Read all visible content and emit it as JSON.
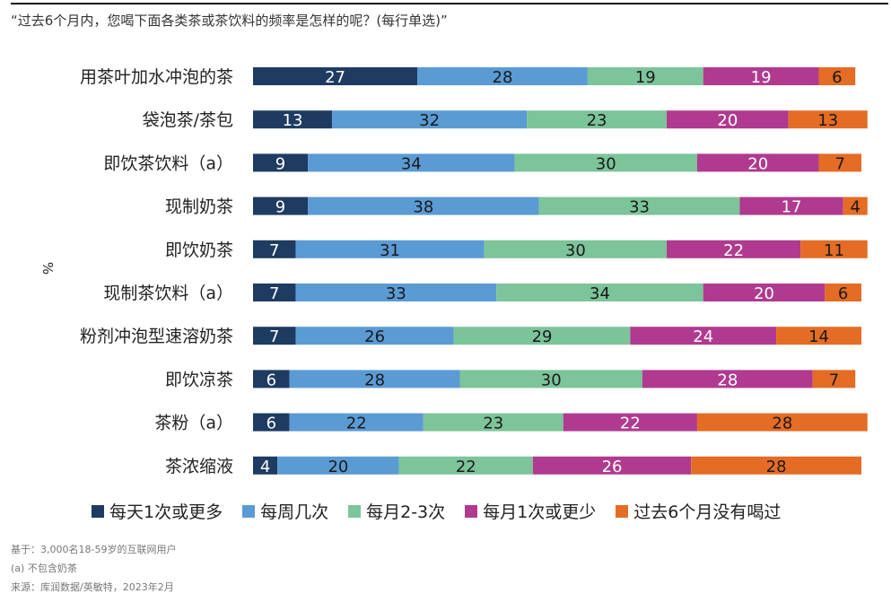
{
  "question": "“过去6个月内，您喝下面各类茶或茶饮料的频率是怎样的呢？(每行单选)”",
  "colors": {
    "daily": "#1e3b62",
    "weekly": "#5a9bd4",
    "monthly23": "#7cc49a",
    "monthly1": "#b03a8f",
    "never": "#e46c25"
  },
  "chart_data": {
    "type": "bar",
    "orientation": "horizontal",
    "stacked": true,
    "percent": true,
    "ylabel": "%",
    "xlim": [
      0,
      100
    ],
    "categories": [
      "用茶叶加水冲泡的茶",
      "袋泡茶/茶包",
      "即饮茶饮料（a）",
      "现制奶茶",
      "即饮奶茶",
      "现制茶饮料（a）",
      "粉剂冲泡型速溶奶茶",
      "即饮凉茶",
      "茶粉（a）",
      "茶浓缩液"
    ],
    "series": [
      {
        "name": "每天1次或更多",
        "color_key": "daily",
        "values": [
          27,
          13,
          9,
          9,
          7,
          7,
          7,
          6,
          6,
          4
        ]
      },
      {
        "name": "每周几次",
        "color_key": "weekly",
        "values": [
          28,
          32,
          34,
          38,
          31,
          33,
          26,
          28,
          22,
          20
        ]
      },
      {
        "name": "每月2-3次",
        "color_key": "monthly23",
        "values": [
          19,
          23,
          30,
          33,
          30,
          34,
          29,
          30,
          23,
          22
        ]
      },
      {
        "name": "每月1次或更少",
        "color_key": "monthly1",
        "values": [
          19,
          20,
          20,
          17,
          22,
          20,
          24,
          28,
          22,
          26
        ]
      },
      {
        "name": "过去6个月没有喝过",
        "color_key": "never",
        "values": [
          6,
          13,
          7,
          4,
          11,
          6,
          14,
          7,
          28,
          28
        ]
      }
    ],
    "legend_position": "bottom",
    "grid": false
  },
  "footnotes": [
    "基于：3,000名18-59岁的互联网用户",
    "(a) 不包含奶茶",
    "来源：库润数据/英敏特，2023年2月"
  ]
}
